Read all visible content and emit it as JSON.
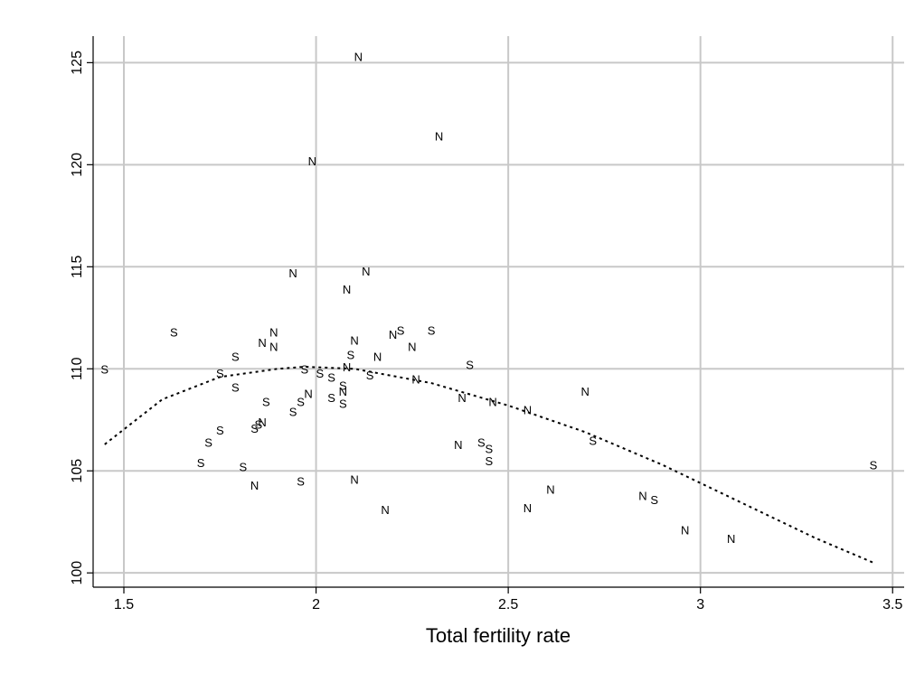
{
  "chart_data": {
    "type": "scatter",
    "title": "",
    "xlabel": "Total fertility rate",
    "ylabel": "",
    "xlim": [
      1.42,
      3.53
    ],
    "ylim": [
      99.3,
      126.3
    ],
    "xticks": [
      1.5,
      2,
      2.5,
      3,
      3.5
    ],
    "yticks": [
      100,
      105,
      110,
      115,
      120,
      125
    ],
    "xtick_labels": [
      "1.5",
      "2",
      "2.5",
      "3",
      "3.5"
    ],
    "ytick_labels": [
      "100",
      "105",
      "110",
      "115",
      "120",
      "125"
    ],
    "grid": true,
    "marker_labels": [
      "N",
      "S"
    ],
    "points": [
      {
        "x": 1.45,
        "y": 110.0,
        "m": "S"
      },
      {
        "x": 1.63,
        "y": 111.8,
        "m": "S"
      },
      {
        "x": 1.7,
        "y": 105.4,
        "m": "S"
      },
      {
        "x": 1.72,
        "y": 106.4,
        "m": "S"
      },
      {
        "x": 1.75,
        "y": 107.0,
        "m": "S"
      },
      {
        "x": 1.75,
        "y": 109.8,
        "m": "S"
      },
      {
        "x": 1.79,
        "y": 110.6,
        "m": "S"
      },
      {
        "x": 1.79,
        "y": 109.1,
        "m": "S"
      },
      {
        "x": 1.81,
        "y": 105.2,
        "m": "S"
      },
      {
        "x": 1.84,
        "y": 104.3,
        "m": "N"
      },
      {
        "x": 1.84,
        "y": 107.1,
        "m": "S"
      },
      {
        "x": 1.85,
        "y": 107.3,
        "m": "S"
      },
      {
        "x": 1.86,
        "y": 107.4,
        "m": "N"
      },
      {
        "x": 1.86,
        "y": 111.3,
        "m": "N"
      },
      {
        "x": 1.87,
        "y": 108.4,
        "m": "S"
      },
      {
        "x": 1.89,
        "y": 111.8,
        "m": "N"
      },
      {
        "x": 1.89,
        "y": 111.1,
        "m": "N"
      },
      {
        "x": 1.94,
        "y": 114.7,
        "m": "N"
      },
      {
        "x": 1.94,
        "y": 107.9,
        "m": "S"
      },
      {
        "x": 1.96,
        "y": 108.4,
        "m": "S"
      },
      {
        "x": 1.96,
        "y": 104.5,
        "m": "S"
      },
      {
        "x": 1.97,
        "y": 110.0,
        "m": "S"
      },
      {
        "x": 1.98,
        "y": 108.8,
        "m": "N"
      },
      {
        "x": 1.99,
        "y": 120.2,
        "m": "N"
      },
      {
        "x": 2.01,
        "y": 109.8,
        "m": "S"
      },
      {
        "x": 2.04,
        "y": 109.6,
        "m": "S"
      },
      {
        "x": 2.04,
        "y": 108.6,
        "m": "S"
      },
      {
        "x": 2.07,
        "y": 109.2,
        "m": "S"
      },
      {
        "x": 2.07,
        "y": 108.9,
        "m": "N"
      },
      {
        "x": 2.07,
        "y": 108.3,
        "m": "S"
      },
      {
        "x": 2.08,
        "y": 113.9,
        "m": "N"
      },
      {
        "x": 2.08,
        "y": 110.1,
        "m": "N"
      },
      {
        "x": 2.09,
        "y": 110.7,
        "m": "S"
      },
      {
        "x": 2.1,
        "y": 111.4,
        "m": "N"
      },
      {
        "x": 2.1,
        "y": 104.6,
        "m": "N"
      },
      {
        "x": 2.11,
        "y": 125.3,
        "m": "N"
      },
      {
        "x": 2.13,
        "y": 114.8,
        "m": "N"
      },
      {
        "x": 2.14,
        "y": 109.7,
        "m": "S"
      },
      {
        "x": 2.16,
        "y": 110.6,
        "m": "N"
      },
      {
        "x": 2.18,
        "y": 103.1,
        "m": "N"
      },
      {
        "x": 2.2,
        "y": 111.7,
        "m": "N"
      },
      {
        "x": 2.22,
        "y": 111.9,
        "m": "S"
      },
      {
        "x": 2.25,
        "y": 111.1,
        "m": "N"
      },
      {
        "x": 2.26,
        "y": 109.5,
        "m": "N"
      },
      {
        "x": 2.3,
        "y": 111.9,
        "m": "S"
      },
      {
        "x": 2.32,
        "y": 121.4,
        "m": "N"
      },
      {
        "x": 2.37,
        "y": 106.3,
        "m": "N"
      },
      {
        "x": 2.38,
        "y": 108.6,
        "m": "N"
      },
      {
        "x": 2.4,
        "y": 110.2,
        "m": "S"
      },
      {
        "x": 2.43,
        "y": 106.4,
        "m": "S"
      },
      {
        "x": 2.45,
        "y": 106.1,
        "m": "S"
      },
      {
        "x": 2.45,
        "y": 105.5,
        "m": "S"
      },
      {
        "x": 2.46,
        "y": 108.4,
        "m": "N"
      },
      {
        "x": 2.55,
        "y": 108.0,
        "m": "N"
      },
      {
        "x": 2.55,
        "y": 103.2,
        "m": "N"
      },
      {
        "x": 2.61,
        "y": 104.1,
        "m": "N"
      },
      {
        "x": 2.7,
        "y": 108.9,
        "m": "N"
      },
      {
        "x": 2.72,
        "y": 106.5,
        "m": "S"
      },
      {
        "x": 2.85,
        "y": 103.8,
        "m": "N"
      },
      {
        "x": 2.88,
        "y": 103.6,
        "m": "S"
      },
      {
        "x": 2.96,
        "y": 102.1,
        "m": "N"
      },
      {
        "x": 3.08,
        "y": 101.7,
        "m": "N"
      },
      {
        "x": 3.45,
        "y": 105.3,
        "m": "S"
      }
    ],
    "fit": {
      "type": "quadratic",
      "x": [
        1.45,
        1.6,
        1.75,
        1.9,
        1.97,
        2.1,
        2.3,
        2.5,
        2.7,
        2.9,
        3.1,
        3.3,
        3.45
      ],
      "y": [
        106.3,
        108.5,
        109.6,
        110.0,
        110.1,
        110.0,
        109.3,
        108.2,
        106.9,
        105.3,
        103.5,
        101.7,
        100.5
      ]
    }
  }
}
